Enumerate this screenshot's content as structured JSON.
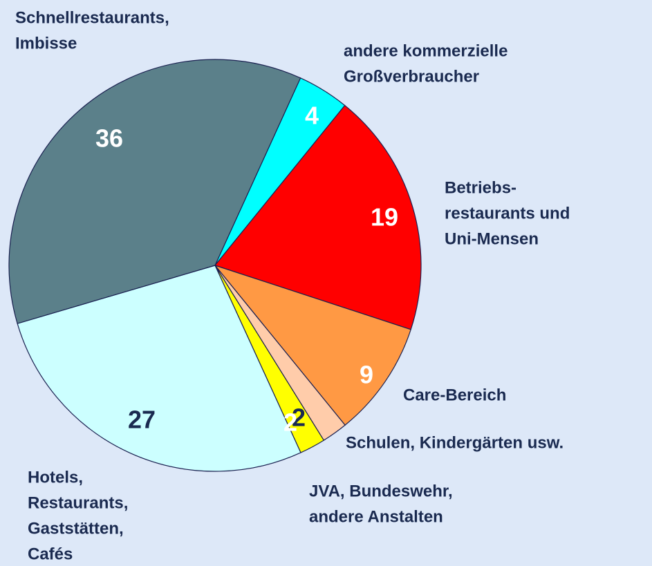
{
  "chart_data": {
    "type": "pie",
    "categories": [
      "andere kommerzielle\nGroßverbraucher",
      "Betriebs-\nrestaurants und\nUni-Mensen",
      "Care-Bereich",
      "Schulen, Kindergärten usw.",
      "JVA, Bundeswehr,\nandere Anstalten",
      "Hotels,\nRestaurants,\nGaststätten,\nCafés",
      "Schnellrestaurants,\nImbisse"
    ],
    "values": [
      4,
      19,
      9,
      2,
      2,
      27,
      36
    ],
    "colors": [
      "#00ffff",
      "#ff0000",
      "#ff9944",
      "#ffccaa",
      "#ffff00",
      "#ccffff",
      "#5b808a"
    ],
    "label_colors": [
      "#ffffff",
      "#ffffff",
      "#ffffff",
      "#1a2a50",
      "#ffffff",
      "#1a2a50",
      "#ffffff"
    ]
  }
}
